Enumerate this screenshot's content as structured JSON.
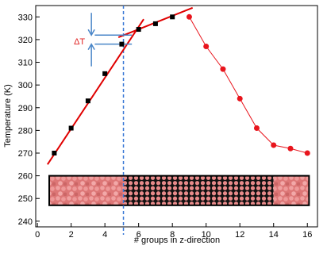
{
  "chart_data": {
    "type": "scatter",
    "xlabel": "# groups in z-direction",
    "ylabel": "Temperature (K)",
    "xlim": [
      -0.1,
      16.6
    ],
    "ylim": [
      237.5,
      335
    ],
    "xticks": [
      0,
      2,
      4,
      6,
      8,
      10,
      12,
      14,
      16
    ],
    "yticks": [
      240,
      250,
      260,
      270,
      280,
      290,
      300,
      310,
      320,
      330
    ],
    "series": [
      {
        "color": "#000000",
        "marker": "square",
        "line": false,
        "x": [
          1,
          2,
          3,
          4,
          5,
          6,
          7,
          8
        ],
        "values": [
          270,
          281,
          293,
          305,
          318,
          324.5,
          327,
          330
        ]
      },
      {
        "color": "#e8141c",
        "marker": "circle",
        "line": true,
        "x": [
          9,
          10,
          11,
          12,
          13,
          14,
          15,
          16
        ],
        "values": [
          330,
          317,
          307,
          294,
          281,
          273.5,
          272,
          270
        ]
      }
    ],
    "fit_lines": [
      {
        "color": "#e00000",
        "x": [
          0.6,
          6.3
        ],
        "values": [
          265,
          329
        ]
      },
      {
        "color": "#e00000",
        "x": [
          4.8,
          9.2
        ],
        "values": [
          321,
          334
        ]
      }
    ],
    "vline": {
      "x": 5.1,
      "color": "#3a78d6"
    },
    "delta": {
      "label": "ΔT",
      "y": [
        322,
        318
      ],
      "x": [
        3.4,
        5.6
      ],
      "arrow_x": 3.2,
      "color": "#4a86c8",
      "label_color": "#e02020"
    },
    "inset": {
      "x": [
        0.7,
        16.1
      ],
      "y": [
        247,
        260
      ]
    }
  }
}
